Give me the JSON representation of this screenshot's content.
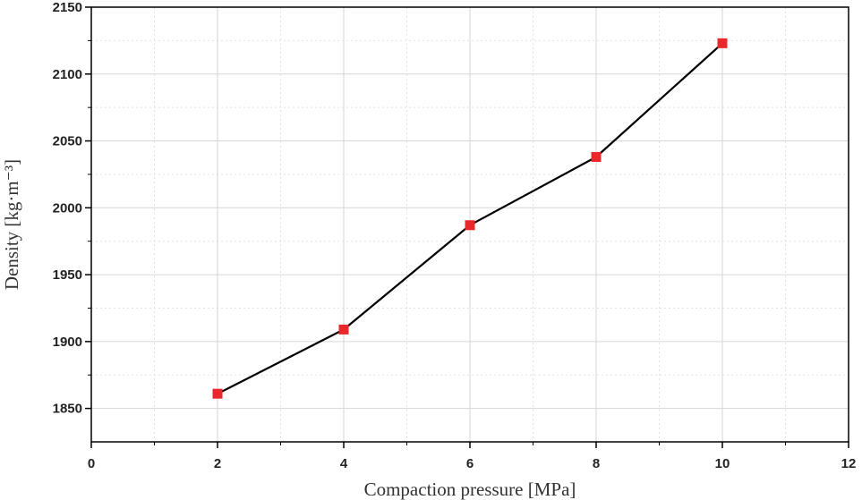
{
  "chart_data": {
    "type": "line",
    "title": "",
    "xlabel": "Compaction pressure [MPa]",
    "ylabel": "Density [kg·m⁻³]",
    "xlim": [
      0,
      12
    ],
    "ylim": [
      1825,
      2150
    ],
    "xticks": [
      0,
      2,
      4,
      6,
      8,
      10,
      12
    ],
    "yticks": [
      1850,
      1900,
      1950,
      2000,
      2050,
      2100,
      2150
    ],
    "grid": true,
    "series": [
      {
        "name": "Density",
        "x": [
          2,
          4,
          6,
          8,
          10
        ],
        "values": [
          1861,
          1909,
          1987,
          2038,
          2123
        ],
        "line_color": "#000000",
        "marker": "square",
        "marker_color": "#e8282b"
      }
    ]
  }
}
